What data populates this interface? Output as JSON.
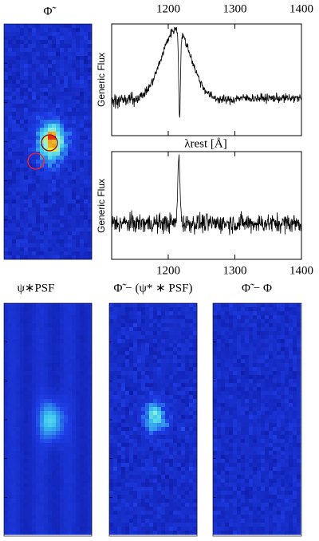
{
  "figure": {
    "image_title": "Φ̃",
    "spectra": [
      {
        "xlim": [
          1115,
          1400
        ],
        "xticks": [
          1200,
          1300,
          1400
        ],
        "xlabel": "λrest [Å]",
        "ylabel": "Generic Flux",
        "tick_side": "top"
      },
      {
        "xlim": [
          1115,
          1400
        ],
        "xticks": [
          1200,
          1300,
          1400
        ],
        "ylabel": "Generic Flux",
        "tick_side": "bottom"
      }
    ],
    "panels": [
      {
        "title": "ψ∗PSF"
      },
      {
        "title": "Φ̃ − (ψ* ∗ PSF)"
      },
      {
        "title": "Φ̃ − Φ"
      }
    ]
  }
}
